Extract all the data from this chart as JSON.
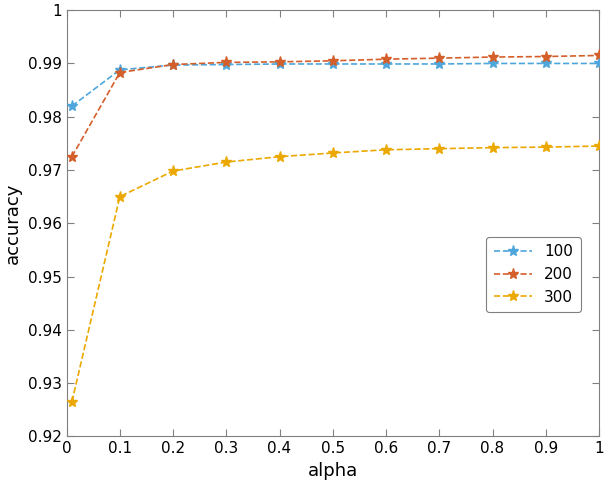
{
  "title": "",
  "xlabel": "alpha",
  "ylabel": "accuracy",
  "xlim": [
    0,
    1
  ],
  "ylim": [
    0.92,
    1.0
  ],
  "series": [
    {
      "label": "100",
      "color": "#4EA6DC",
      "x": [
        0.01,
        0.1,
        0.2,
        0.3,
        0.4,
        0.5,
        0.6,
        0.7,
        0.8,
        0.9,
        1.0
      ],
      "y": [
        0.982,
        0.9888,
        0.9897,
        0.9898,
        0.9899,
        0.9899,
        0.9899,
        0.9899,
        0.99,
        0.99,
        0.99
      ]
    },
    {
      "label": "200",
      "color": "#D45F2A",
      "x": [
        0.01,
        0.1,
        0.2,
        0.3,
        0.4,
        0.5,
        0.6,
        0.7,
        0.8,
        0.9,
        1.0
      ],
      "y": [
        0.9725,
        0.9883,
        0.9898,
        0.9902,
        0.9903,
        0.9905,
        0.9908,
        0.991,
        0.9912,
        0.9913,
        0.9915
      ]
    },
    {
      "label": "300",
      "color": "#EBA800",
      "x": [
        0.01,
        0.1,
        0.2,
        0.3,
        0.4,
        0.5,
        0.6,
        0.7,
        0.8,
        0.9,
        1.0
      ],
      "y": [
        0.9265,
        0.965,
        0.9698,
        0.9715,
        0.9725,
        0.9732,
        0.9738,
        0.974,
        0.9742,
        0.9743,
        0.9745
      ]
    }
  ],
  "xticks": [
    0,
    0.1,
    0.2,
    0.3,
    0.4,
    0.5,
    0.6,
    0.7,
    0.8,
    0.9,
    1.0
  ],
  "yticks": [
    0.92,
    0.93,
    0.94,
    0.95,
    0.96,
    0.97,
    0.98,
    0.99,
    1.0
  ],
  "background_color": "#FFFFFF",
  "legend_edge_color": "#808080"
}
